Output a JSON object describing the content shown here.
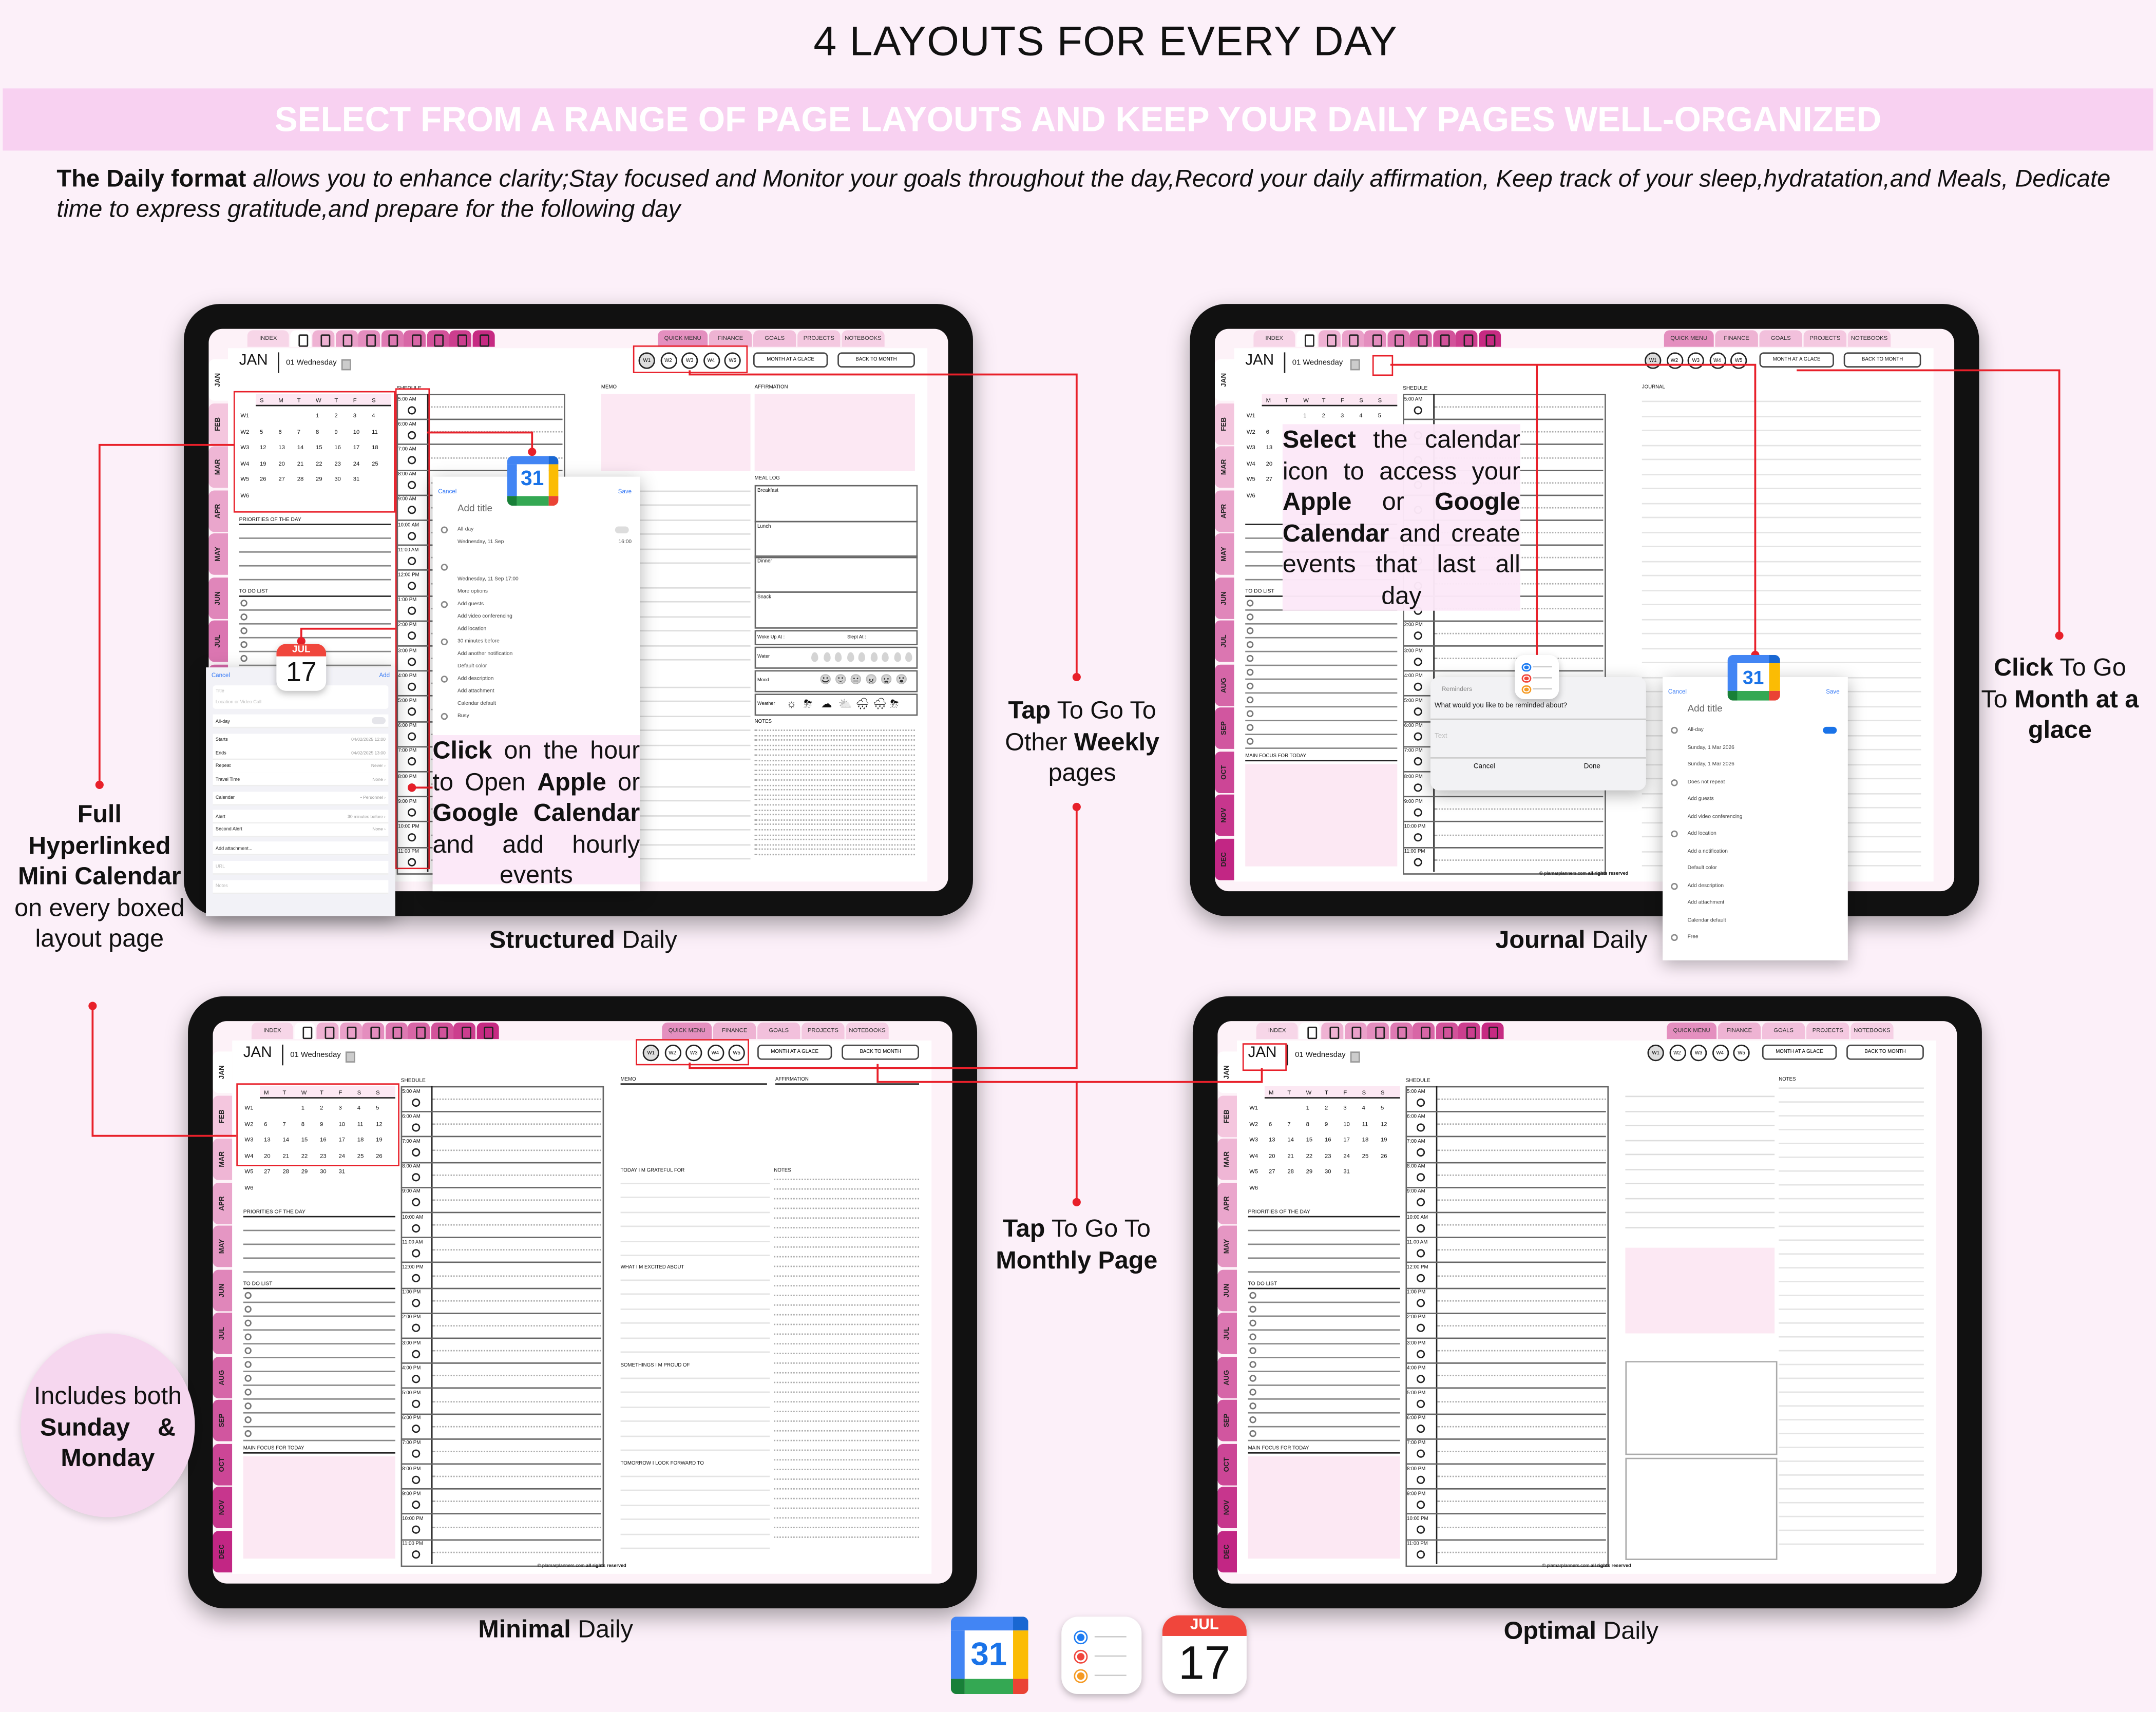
{
  "title": "4 LAYOUTS FOR EVERY DAY",
  "subtitle": "SELECT FROM A RANGE OF PAGE LAYOUTS AND KEEP YOUR DAILY PAGES WELL-ORGANIZED",
  "intro": {
    "bold": "The Daily format",
    "text": " allows you to enhance clarity;Stay focused and Monitor your goals throughout the day,Record your daily affirmation, Keep track of your sleep,hydratation,and Meals, Dedicate time to express gratitude,and prepare for the following day"
  },
  "colors": {
    "accent_red": "#e8202a",
    "band_pink": "#f8d1f1",
    "soft_pink": "#fce8f3",
    "tab_deep": "#d6237a"
  },
  "planner": {
    "tab_index": "INDEX",
    "tab_icons": [
      "calendar-icon",
      "notes-icon",
      "fitness-icon",
      "self-care-icon",
      "dumbbell-icon",
      "growth-chart-icon",
      "money-cycle-icon",
      "checklist-icon"
    ],
    "tabs_right": [
      "QUICK MENU",
      "FINANCE",
      "GOALS",
      "PROJECTS",
      "NOTEBOOKS"
    ],
    "months": [
      "JAN",
      "FEB",
      "MAR",
      "APR",
      "MAY",
      "JUN",
      "JUL",
      "AUG",
      "SEP",
      "OCT",
      "NOV",
      "DEC"
    ],
    "month_label": "JAN",
    "day_label": "01 Wednesday",
    "weeks": [
      "W1",
      "W2",
      "W3",
      "W4",
      "W5"
    ],
    "btn_glance": "MONTH AT A GLACE",
    "btn_back": "BACK TO MONTH",
    "cal_sunday": {
      "days": [
        "S",
        "M",
        "T",
        "W",
        "T",
        "F",
        "S"
      ],
      "rows": [
        {
          "w": "W1",
          "d": [
            "",
            "",
            "",
            "1",
            "2",
            "3",
            "4"
          ]
        },
        {
          "w": "W2",
          "d": [
            "5",
            "6",
            "7",
            "8",
            "9",
            "10",
            "11"
          ]
        },
        {
          "w": "W3",
          "d": [
            "12",
            "13",
            "14",
            "15",
            "16",
            "17",
            "18"
          ]
        },
        {
          "w": "W4",
          "d": [
            "19",
            "20",
            "21",
            "22",
            "23",
            "24",
            "25"
          ]
        },
        {
          "w": "W5",
          "d": [
            "26",
            "27",
            "28",
            "29",
            "30",
            "31",
            ""
          ]
        },
        {
          "w": "W6",
          "d": [
            "",
            "",
            "",
            "",
            "",
            "",
            ""
          ]
        }
      ]
    },
    "cal_monday": {
      "days": [
        "M",
        "T",
        "W",
        "T",
        "F",
        "S",
        "S"
      ],
      "rows": [
        {
          "w": "W1",
          "d": [
            "",
            "",
            "1",
            "2",
            "3",
            "4",
            "5"
          ]
        },
        {
          "w": "W2",
          "d": [
            "6",
            "7",
            "8",
            "9",
            "10",
            "11",
            "12"
          ]
        },
        {
          "w": "W3",
          "d": [
            "13",
            "14",
            "15",
            "16",
            "17",
            "18",
            "19"
          ]
        },
        {
          "w": "W4",
          "d": [
            "20",
            "21",
            "22",
            "23",
            "24",
            "25",
            "26"
          ]
        },
        {
          "w": "W5",
          "d": [
            "27",
            "28",
            "29",
            "30",
            "31",
            "",
            ""
          ]
        },
        {
          "w": "W6",
          "d": [
            "",
            "",
            "",
            "",
            "",
            "",
            ""
          ]
        }
      ]
    },
    "schedule": "SHEDULE",
    "hours": [
      "5:00 AM",
      "6:00 AM",
      "7:00 AM",
      "8:00 AM",
      "9:00 AM",
      "10:00 AM",
      "11:00 AM",
      "12:00 PM",
      "1:00 PM",
      "2:00 PM",
      "3:00 PM",
      "4:00 PM",
      "5:00 PM",
      "6:00 PM",
      "7:00 PM",
      "8:00 PM",
      "9:00 PM",
      "10:00 PM",
      "11:00 PM"
    ],
    "priorities": "PRIORITIES OF THE DAY",
    "todo": "TO DO LIST",
    "main_focus": "MAIN FOCUS FOR TODAY",
    "memo": "MEMO",
    "affirmation": "AFFIRMATION",
    "grateful": "TODAY I M GRATEFUL FOR",
    "excited": "WHAT I M EXCITED ABOUT",
    "proud": "SOMETHINGS I M PROUD OF",
    "forward": "TOMORROW I LOOK FORWARD TO",
    "notes": "NOTES",
    "journal": "JOURNAL",
    "meal_log": "MEAL LOG",
    "meals": [
      "Breakfast",
      "Lunch",
      "Dinner",
      "Snack"
    ],
    "woke": "Woke Up At :",
    "slept": "Slept At :",
    "water": "Water",
    "mood": "Mood",
    "mood_icons": [
      "😀",
      "🙂",
      "😐",
      "😠",
      "😦",
      "😮"
    ],
    "weather": "Weather",
    "weather_icons": [
      "☼",
      "⛈",
      "☁",
      "⛅",
      "🌧",
      "🌨",
      "⛈"
    ],
    "footer_site": "© plamarplanners.com",
    "footer_rights": "all rights reserved"
  },
  "layouts": [
    {
      "bold": "Structured",
      "rest": " Daily"
    },
    {
      "bold": "Journal",
      "rest": " Daily"
    },
    {
      "bold": "Minimal",
      "rest": " Daily"
    },
    {
      "bold": "Optimal",
      "rest": " Daily"
    }
  ],
  "annotations": {
    "hyperlinked": {
      "b1": "Full Hyperlinked Mini Calendar",
      "t1": " on every boxed layout page"
    },
    "weekly": {
      "b1": "Tap",
      "t1": " To Go To Other ",
      "b2": "Weekly",
      "t2": " pages"
    },
    "monthly": {
      "b1": "Tap",
      "t1": " To Go To ",
      "b2": "Monthly Page"
    },
    "glace": {
      "b1": "Click",
      "t1": " To Go To ",
      "b2": "Month at a glace"
    },
    "hourly": {
      "b1": "Click",
      "t1": " on the hour to Open ",
      "b2": "Apple",
      "t2": " or ",
      "b3": "Google Calendar",
      "t3": " and add hourly events"
    },
    "allday": {
      "b1": "Select",
      "t1": " the calendar icon to access your ",
      "b2": "Apple",
      "t2": " or ",
      "b3": "Google Calendar",
      "t3": " and create events that last all day"
    },
    "badge": {
      "t1": "Includes both",
      "b1": "Sunday",
      "amp": "&",
      "b2": "Monday"
    }
  },
  "apple_form": {
    "cancel": "Cancel",
    "add": "Add",
    "title_ph": "Title",
    "location_ph": "Location or Video Call",
    "rows": [
      {
        "label": "All-day",
        "value": ""
      },
      {
        "label": "Starts",
        "value": "04/02/2025  12:00"
      },
      {
        "label": "Ends",
        "value": "04/02/2025  13:00"
      },
      {
        "label": "Repeat",
        "value": "Never ›"
      },
      {
        "label": "Travel Time",
        "value": "None ›"
      },
      {
        "label": "Calendar",
        "value": "• Personnel ›"
      },
      {
        "label": "Alert",
        "value": "30 minutes before ›"
      },
      {
        "label": "Second Alert",
        "value": "None ›"
      },
      {
        "label": "Add attachment...",
        "value": ""
      },
      {
        "label": "URL",
        "value": ""
      },
      {
        "label": "Notes",
        "value": ""
      }
    ]
  },
  "google_form": {
    "cancel": "Cancel",
    "save": "Save",
    "title_ph": "Add title",
    "rows": [
      "All-day",
      "Wednesday, 11 Sep",
      "",
      "",
      "Wednesday, 11 Sep   17:00",
      "More options",
      "Add guests",
      "Add video conferencing",
      "Add location",
      "30 minutes before",
      "Add another notification",
      "Default color",
      "Add description",
      "Add attachment",
      "Calendar default",
      "Busy"
    ],
    "start_time": "16:00"
  },
  "google_form2": {
    "cancel": "Cancel",
    "save": "Save",
    "title_ph": "Add title",
    "rows": [
      "All-day",
      "Sunday, 1 Mar 2026",
      "Sunday, 1 Mar 2026",
      "Does not repeat",
      "Add guests",
      "Add video conferencing",
      "Add location",
      "Add a notification",
      "Default color",
      "Add description",
      "Add attachment",
      "Calendar default",
      "Free"
    ]
  },
  "reminders": {
    "app": "Reminders",
    "question": "What would you like to be reminded about?",
    "placeholder": "Text",
    "cancel": "Cancel",
    "done": "Done"
  },
  "app_icons": {
    "gcal_day": "31",
    "apple_month": "JUL",
    "apple_day": "17"
  }
}
